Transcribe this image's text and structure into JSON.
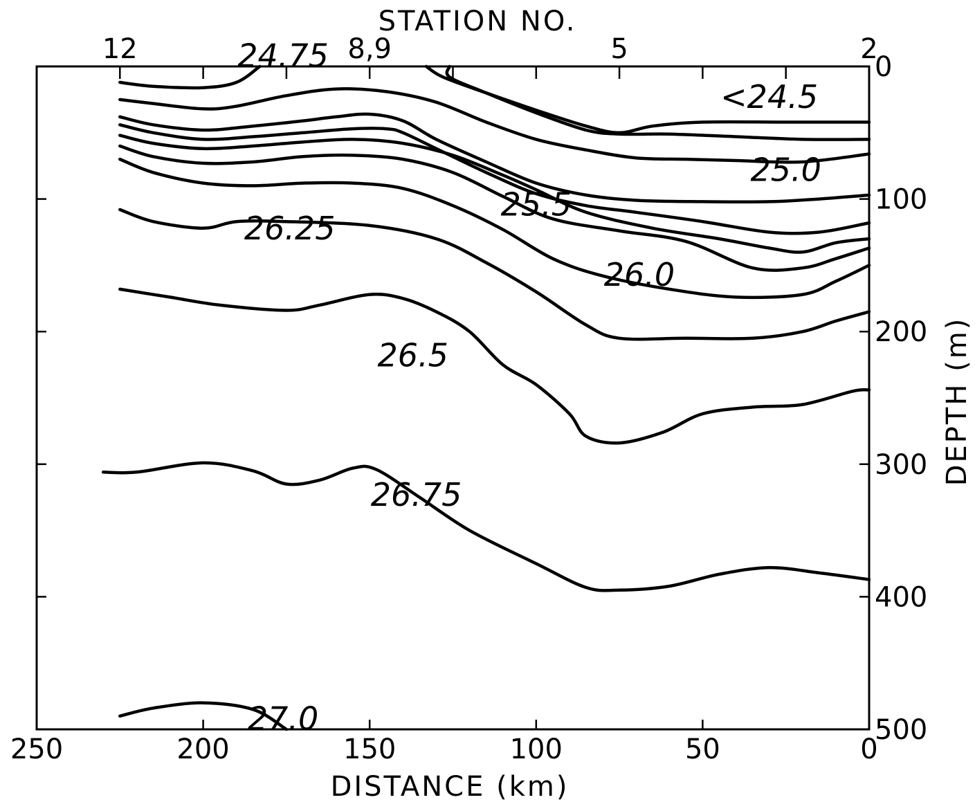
{
  "chart_data": {
    "type": "line",
    "title": "STATION NO.",
    "xlabel": "DISTANCE (km)",
    "ylabel": "DEPTH (m)",
    "xlim": [
      250,
      0
    ],
    "ylim": [
      0,
      500
    ],
    "x_ticks": [
      250,
      200,
      150,
      100,
      50,
      0
    ],
    "y_ticks": [
      0,
      100,
      200,
      300,
      400,
      500
    ],
    "station_ticks": [
      {
        "label": "12",
        "x": 225
      },
      {
        "label": "8,9",
        "x": 150
      },
      {
        "label": "5",
        "x": 75
      },
      {
        "label": "2",
        "x": 0
      }
    ],
    "station_tick_marks": [
      225,
      200,
      175,
      150,
      125,
      100,
      75,
      50,
      25,
      0
    ],
    "series": [
      {
        "name": "24.75",
        "points": [
          [
            225,
            12
          ],
          [
            215,
            15
          ],
          [
            200,
            16
          ],
          [
            190,
            12
          ],
          [
            183,
            0
          ]
        ]
      },
      {
        "name": "<24.5 upper",
        "points": [
          [
            133,
            0
          ],
          [
            128,
            8
          ],
          [
            115,
            20
          ],
          [
            100,
            33
          ],
          [
            85,
            45
          ],
          [
            75,
            50
          ],
          [
            65,
            45
          ],
          [
            50,
            42
          ],
          [
            25,
            42
          ],
          [
            0,
            42
          ]
        ]
      },
      {
        "name": "<24.5 lower",
        "points": [
          [
            126,
            0
          ],
          [
            126,
            8
          ],
          [
            115,
            20
          ],
          [
            100,
            35
          ],
          [
            85,
            48
          ],
          [
            75,
            51
          ],
          [
            60,
            51
          ],
          [
            40,
            53
          ],
          [
            20,
            55
          ],
          [
            0,
            55
          ]
        ]
      },
      {
        "name": "25.0 a",
        "points": [
          [
            225,
            25
          ],
          [
            215,
            28
          ],
          [
            200,
            32
          ],
          [
            190,
            30
          ],
          [
            175,
            22
          ],
          [
            160,
            17
          ],
          [
            145,
            19
          ],
          [
            130,
            27
          ],
          [
            115,
            42
          ],
          [
            100,
            55
          ],
          [
            85,
            63
          ],
          [
            70,
            69
          ],
          [
            55,
            70
          ],
          [
            40,
            71
          ],
          [
            20,
            72
          ],
          [
            0,
            66
          ]
        ]
      },
      {
        "name": "25.0 b",
        "points": [
          [
            225,
            38
          ],
          [
            215,
            44
          ],
          [
            200,
            48
          ],
          [
            185,
            45
          ],
          [
            170,
            41
          ],
          [
            160,
            38
          ],
          [
            150,
            36
          ],
          [
            140,
            41
          ],
          [
            130,
            55
          ],
          [
            115,
            72
          ],
          [
            100,
            88
          ],
          [
            85,
            97
          ],
          [
            70,
            101
          ],
          [
            50,
            102
          ],
          [
            30,
            102
          ],
          [
            15,
            100
          ],
          [
            0,
            97
          ]
        ]
      },
      {
        "name": "25.5",
        "points": [
          [
            225,
            44
          ],
          [
            215,
            50
          ],
          [
            200,
            55
          ],
          [
            185,
            53
          ],
          [
            170,
            50
          ],
          [
            155,
            47
          ],
          [
            145,
            47
          ],
          [
            140,
            50
          ],
          [
            130,
            62
          ],
          [
            115,
            80
          ],
          [
            100,
            96
          ],
          [
            85,
            105
          ],
          [
            70,
            110
          ],
          [
            50,
            117
          ],
          [
            30,
            125
          ],
          [
            15,
            125
          ],
          [
            0,
            118
          ]
        ]
      },
      {
        "name": "25.5 b",
        "points": [
          [
            225,
            52
          ],
          [
            215,
            58
          ],
          [
            200,
            62
          ],
          [
            185,
            60
          ],
          [
            170,
            57
          ],
          [
            155,
            55
          ],
          [
            140,
            58
          ],
          [
            125,
            67
          ],
          [
            110,
            82
          ],
          [
            100,
            93
          ],
          [
            85,
            110
          ],
          [
            65,
            122
          ],
          [
            45,
            130
          ],
          [
            30,
            137
          ],
          [
            20,
            140
          ],
          [
            10,
            133
          ],
          [
            0,
            130
          ]
        ]
      },
      {
        "name": "26.0",
        "points": [
          [
            225,
            60
          ],
          [
            215,
            68
          ],
          [
            200,
            73
          ],
          [
            185,
            72
          ],
          [
            170,
            68
          ],
          [
            155,
            67
          ],
          [
            140,
            70
          ],
          [
            125,
            80
          ],
          [
            110,
            98
          ],
          [
            95,
            115
          ],
          [
            75,
            124
          ],
          [
            55,
            132
          ],
          [
            35,
            152
          ],
          [
            20,
            152
          ],
          [
            10,
            145
          ],
          [
            0,
            137
          ]
        ]
      },
      {
        "name": "26.0 b",
        "points": [
          [
            225,
            70
          ],
          [
            215,
            80
          ],
          [
            200,
            88
          ],
          [
            185,
            90
          ],
          [
            170,
            88
          ],
          [
            155,
            88
          ],
          [
            140,
            92
          ],
          [
            125,
            105
          ],
          [
            110,
            123
          ],
          [
            95,
            145
          ],
          [
            80,
            158
          ],
          [
            60,
            168
          ],
          [
            40,
            174
          ],
          [
            20,
            172
          ],
          [
            10,
            162
          ],
          [
            0,
            150
          ]
        ]
      },
      {
        "name": "26.25",
        "points": [
          [
            225,
            108
          ],
          [
            215,
            117
          ],
          [
            200,
            122
          ],
          [
            190,
            117
          ],
          [
            175,
            117
          ],
          [
            150,
            120
          ],
          [
            130,
            130
          ],
          [
            115,
            148
          ],
          [
            100,
            170
          ],
          [
            85,
            195
          ],
          [
            75,
            205
          ],
          [
            55,
            205
          ],
          [
            35,
            205
          ],
          [
            20,
            200
          ],
          [
            10,
            192
          ],
          [
            0,
            185
          ]
        ]
      },
      {
        "name": "26.5",
        "points": [
          [
            225,
            168
          ],
          [
            210,
            174
          ],
          [
            195,
            180
          ],
          [
            175,
            184
          ],
          [
            165,
            180
          ],
          [
            150,
            172
          ],
          [
            140,
            175
          ],
          [
            130,
            185
          ],
          [
            120,
            200
          ],
          [
            110,
            225
          ],
          [
            100,
            240
          ],
          [
            90,
            262
          ],
          [
            85,
            279
          ],
          [
            75,
            284
          ],
          [
            62,
            276
          ],
          [
            50,
            262
          ],
          [
            35,
            257
          ],
          [
            20,
            255
          ],
          [
            5,
            245
          ],
          [
            0,
            244
          ]
        ]
      },
      {
        "name": "26.75",
        "points": [
          [
            230,
            306
          ],
          [
            220,
            306
          ],
          [
            200,
            299
          ],
          [
            185,
            305
          ],
          [
            175,
            315
          ],
          [
            165,
            312
          ],
          [
            155,
            303
          ],
          [
            148,
            304
          ],
          [
            135,
            325
          ],
          [
            120,
            350
          ],
          [
            100,
            375
          ],
          [
            85,
            393
          ],
          [
            75,
            395
          ],
          [
            60,
            392
          ],
          [
            45,
            383
          ],
          [
            30,
            378
          ],
          [
            15,
            382
          ],
          [
            0,
            387
          ]
        ]
      },
      {
        "name": "27.0",
        "points": [
          [
            225,
            490
          ],
          [
            215,
            484
          ],
          [
            200,
            480
          ],
          [
            185,
            485
          ],
          [
            175,
            500
          ]
        ]
      }
    ],
    "contour_labels": [
      {
        "text": "24.75",
        "x": 176,
        "y": -8
      },
      {
        "text": "<24.5",
        "x": 30,
        "y": 23
      },
      {
        "text": "25.0",
        "x": 25,
        "y": 78
      },
      {
        "text": "25.5",
        "x": 100,
        "y": 104
      },
      {
        "text": "26.0",
        "x": 69,
        "y": 157
      },
      {
        "text": "26.25",
        "x": 174,
        "y": 122
      },
      {
        "text": "26.5",
        "x": 137,
        "y": 218
      },
      {
        "text": "26.75",
        "x": 136,
        "y": 323
      },
      {
        "text": "27.0",
        "x": 176,
        "y": 492
      }
    ],
    "grid": false
  }
}
